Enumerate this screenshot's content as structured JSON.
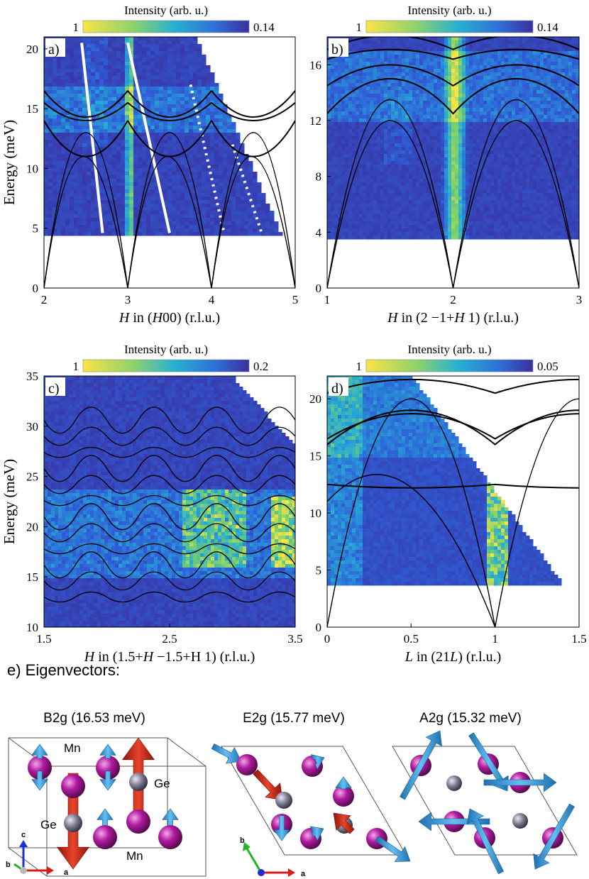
{
  "figure": {
    "panels": [
      {
        "id": "a",
        "label": "a)",
        "colorbar": {
          "title": "Intensity (arb. u.)",
          "min_label": "1",
          "max_label": "0.14"
        },
        "xlabel_italic": "H",
        "xlabel_rest": " in (",
        "xlabel_italic2": "H",
        "xlabel_tail": "00) (r.l.u.)",
        "ylabel": "Energy (meV)",
        "xticks": [
          "2",
          "3",
          "4",
          "5"
        ],
        "yticks": [
          "0",
          "5",
          "10",
          "15",
          "20"
        ]
      },
      {
        "id": "b",
        "label": "b)",
        "colorbar": {
          "title": "Intensity (arb. u.)",
          "min_label": "1",
          "max_label": "0.14"
        },
        "xlabel_italic": "H",
        "xlabel_rest": " in (2 −1+",
        "xlabel_italic2": "H",
        "xlabel_tail": " 1) (r.l.u.)",
        "xticks": [
          "1",
          "2",
          "3"
        ],
        "yticks": [
          "0",
          "4",
          "8",
          "12",
          "16"
        ]
      },
      {
        "id": "c",
        "label": "c)",
        "colorbar": {
          "title": "Intensity (arb. u.)",
          "min_label": "1",
          "max_label": "0.2"
        },
        "xlabel_italic": "H",
        "xlabel_rest": " in (1.5+",
        "xlabel_italic2": "H",
        "xlabel_tail": " −1.5+H 1) (r.l.u.)",
        "ylabel": "Energy (meV)",
        "xticks": [
          "1.5",
          "2.5",
          "3.5"
        ],
        "yticks": [
          "10",
          "15",
          "20",
          "25",
          "30",
          "35"
        ]
      },
      {
        "id": "d",
        "label": "d)",
        "colorbar": {
          "title": "Intensity (arb. u.)",
          "min_label": "1",
          "max_label": "0.05"
        },
        "xlabel_italic": "L",
        "xlabel_rest": " in (21",
        "xlabel_italic2": "L",
        "xlabel_tail": ") (r.l.u.)",
        "xticks": [
          "0",
          "0.5",
          "1",
          "1.5"
        ],
        "yticks": [
          "0",
          "5",
          "10",
          "15",
          "20"
        ]
      }
    ],
    "eigen": {
      "title": "e) Eigenvectors:",
      "modes": [
        {
          "name": "B2g (16.53 meV)"
        },
        {
          "name": "E2g (15.77 meV)"
        },
        {
          "name": "A2g (15.32 meV)"
        }
      ],
      "atom_labels": {
        "mn_top": "Mn",
        "ge_right": "Ge",
        "ge_left": "Ge",
        "mn_bottom": "Mn"
      },
      "axes": {
        "a": "a",
        "b": "b",
        "c": "c"
      }
    },
    "colors": {
      "low": "#3b36a0",
      "mid": "#2c9fe0",
      "high": "#f5e040",
      "mn_atom": "#b01a9e",
      "ge_atom": "#7e7e92",
      "arrow_blue": "#3a9ad8",
      "arrow_red": "#d02818"
    }
  }
}
